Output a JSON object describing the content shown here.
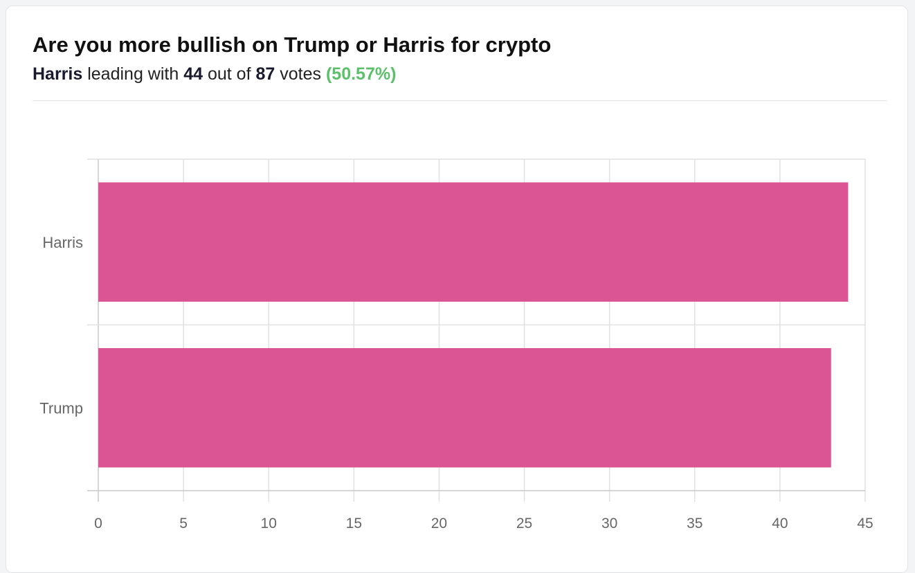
{
  "header": {
    "title": "Are you more bullish on Trump or Harris for crypto",
    "leader": "Harris",
    "text_leading_with": "leading with",
    "leader_votes": "44",
    "text_out_of": "out of",
    "total_votes": "87",
    "text_votes": "votes",
    "leader_pct": "(50.57%)"
  },
  "colors": {
    "bar": "#db5595",
    "grid": "#e1e1e1",
    "axis": "#c8c8c8",
    "pct_green": "#5cc06a"
  },
  "chart_data": {
    "type": "bar",
    "orientation": "horizontal",
    "categories": [
      "Harris",
      "Trump"
    ],
    "values": [
      44,
      43
    ],
    "xlim": [
      0,
      45
    ],
    "x_ticks": [
      "0",
      "5",
      "10",
      "15",
      "20",
      "25",
      "30",
      "35",
      "40",
      "45"
    ],
    "grid": true,
    "legend": "none"
  }
}
